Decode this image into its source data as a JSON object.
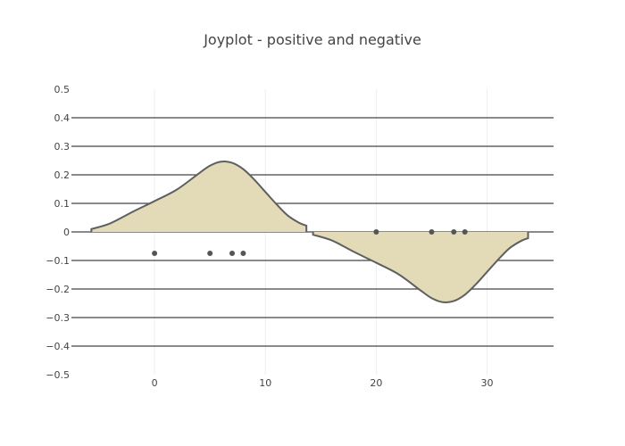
{
  "chart_data": {
    "type": "area",
    "title": "Joyplot - positive and negative",
    "xlabel": "",
    "ylabel": "",
    "xlim": [
      -7.5,
      36
    ],
    "ylim": [
      -0.5,
      0.5
    ],
    "x_ticks": [
      0,
      10,
      20,
      30
    ],
    "x_tick_labels": [
      "0",
      "10",
      "20",
      "30"
    ],
    "y_ticks": [
      0.5,
      0.4,
      0.3,
      0.2,
      0.1,
      0,
      -0.1,
      -0.2,
      -0.3,
      -0.4,
      -0.5
    ],
    "y_tick_labels": [
      "0.5",
      "0.4",
      "0.3",
      "0.2",
      "0.1",
      "0",
      "−0.1",
      "−0.2",
      "−0.3",
      "−0.4",
      "−0.5"
    ],
    "grid": true,
    "fill_color": "#e3dbb8",
    "line_color": "#5f5f5f",
    "point_color": "#555555",
    "series": [
      {
        "kind": "density",
        "direction": "positive",
        "x": [
          -5.7,
          -4,
          -2,
          0,
          2,
          4,
          5,
          6,
          7,
          8,
          9,
          10,
          11,
          12,
          13,
          13.7
        ],
        "y": [
          0.01,
          0.03,
          0.07,
          0.108,
          0.148,
          0.205,
          0.232,
          0.246,
          0.242,
          0.22,
          0.183,
          0.14,
          0.097,
          0.058,
          0.033,
          0.022
        ],
        "points": {
          "x": [
            0,
            5,
            7,
            8
          ],
          "y": [
            -0.075,
            -0.075,
            -0.075,
            -0.075
          ]
        }
      },
      {
        "kind": "density",
        "direction": "negative",
        "x": [
          14.3,
          16,
          18,
          20,
          22,
          24,
          25,
          26,
          27,
          28,
          29,
          30,
          31,
          32,
          33,
          33.7
        ],
        "y": [
          -0.01,
          -0.03,
          -0.07,
          -0.108,
          -0.148,
          -0.205,
          -0.232,
          -0.246,
          -0.242,
          -0.22,
          -0.183,
          -0.14,
          -0.097,
          -0.058,
          -0.033,
          -0.022
        ],
        "points": {
          "x": [
            20,
            25,
            27,
            28
          ],
          "y": [
            0,
            0,
            0,
            0
          ]
        }
      }
    ]
  }
}
